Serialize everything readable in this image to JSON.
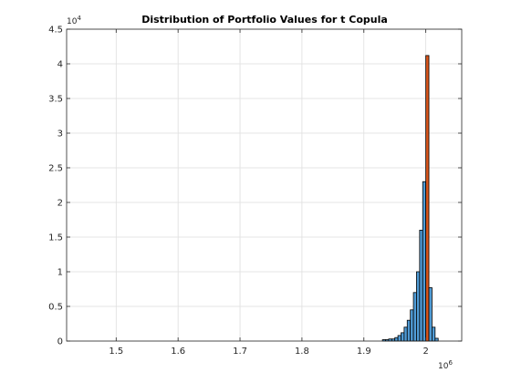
{
  "chart_data": {
    "type": "bar",
    "title": "Distribution of Portfolio Values for t Copula",
    "xlim": [
      1.42,
      2.058
    ],
    "ylim": [
      0,
      4.5
    ],
    "x_ticks": [
      1.5,
      1.6,
      1.7,
      1.8,
      1.9,
      2.0
    ],
    "x_tick_labels": [
      "1.5",
      "1.6",
      "1.7",
      "1.8",
      "1.9",
      "2"
    ],
    "y_ticks": [
      0,
      0.5,
      1,
      1.5,
      2,
      2.5,
      3,
      3.5,
      4,
      4.5
    ],
    "y_tick_labels": [
      "0",
      "0.5",
      "1",
      "1.5",
      "2",
      "2.5",
      "3",
      "3.5",
      "4",
      "4.5"
    ],
    "x_exponent": "10",
    "x_exponent_power": "6",
    "y_exponent": "10",
    "y_exponent_power": "4",
    "grid": true,
    "bin_width": 0.005,
    "bars": [
      {
        "x": 1.9325,
        "y": 0.02
      },
      {
        "x": 1.9375,
        "y": 0.02
      },
      {
        "x": 1.9425,
        "y": 0.03
      },
      {
        "x": 1.9475,
        "y": 0.03
      },
      {
        "x": 1.9525,
        "y": 0.05
      },
      {
        "x": 1.9575,
        "y": 0.08
      },
      {
        "x": 1.9625,
        "y": 0.12
      },
      {
        "x": 1.9675,
        "y": 0.2
      },
      {
        "x": 1.9725,
        "y": 0.3
      },
      {
        "x": 1.9775,
        "y": 0.45
      },
      {
        "x": 1.9825,
        "y": 0.7
      },
      {
        "x": 1.9875,
        "y": 1.0
      },
      {
        "x": 1.9925,
        "y": 1.6
      },
      {
        "x": 1.9975,
        "y": 2.3
      },
      {
        "x": 2.0025,
        "y": 4.12,
        "highlight": true
      },
      {
        "x": 2.0075,
        "y": 0.77
      },
      {
        "x": 2.0125,
        "y": 0.2
      },
      {
        "x": 2.0175,
        "y": 0.04
      }
    ],
    "colors": {
      "bar": "#4f9bd5",
      "highlight": "#d9541a",
      "edge": "#000000",
      "grid": "#dedede",
      "axis": "#262626"
    }
  }
}
